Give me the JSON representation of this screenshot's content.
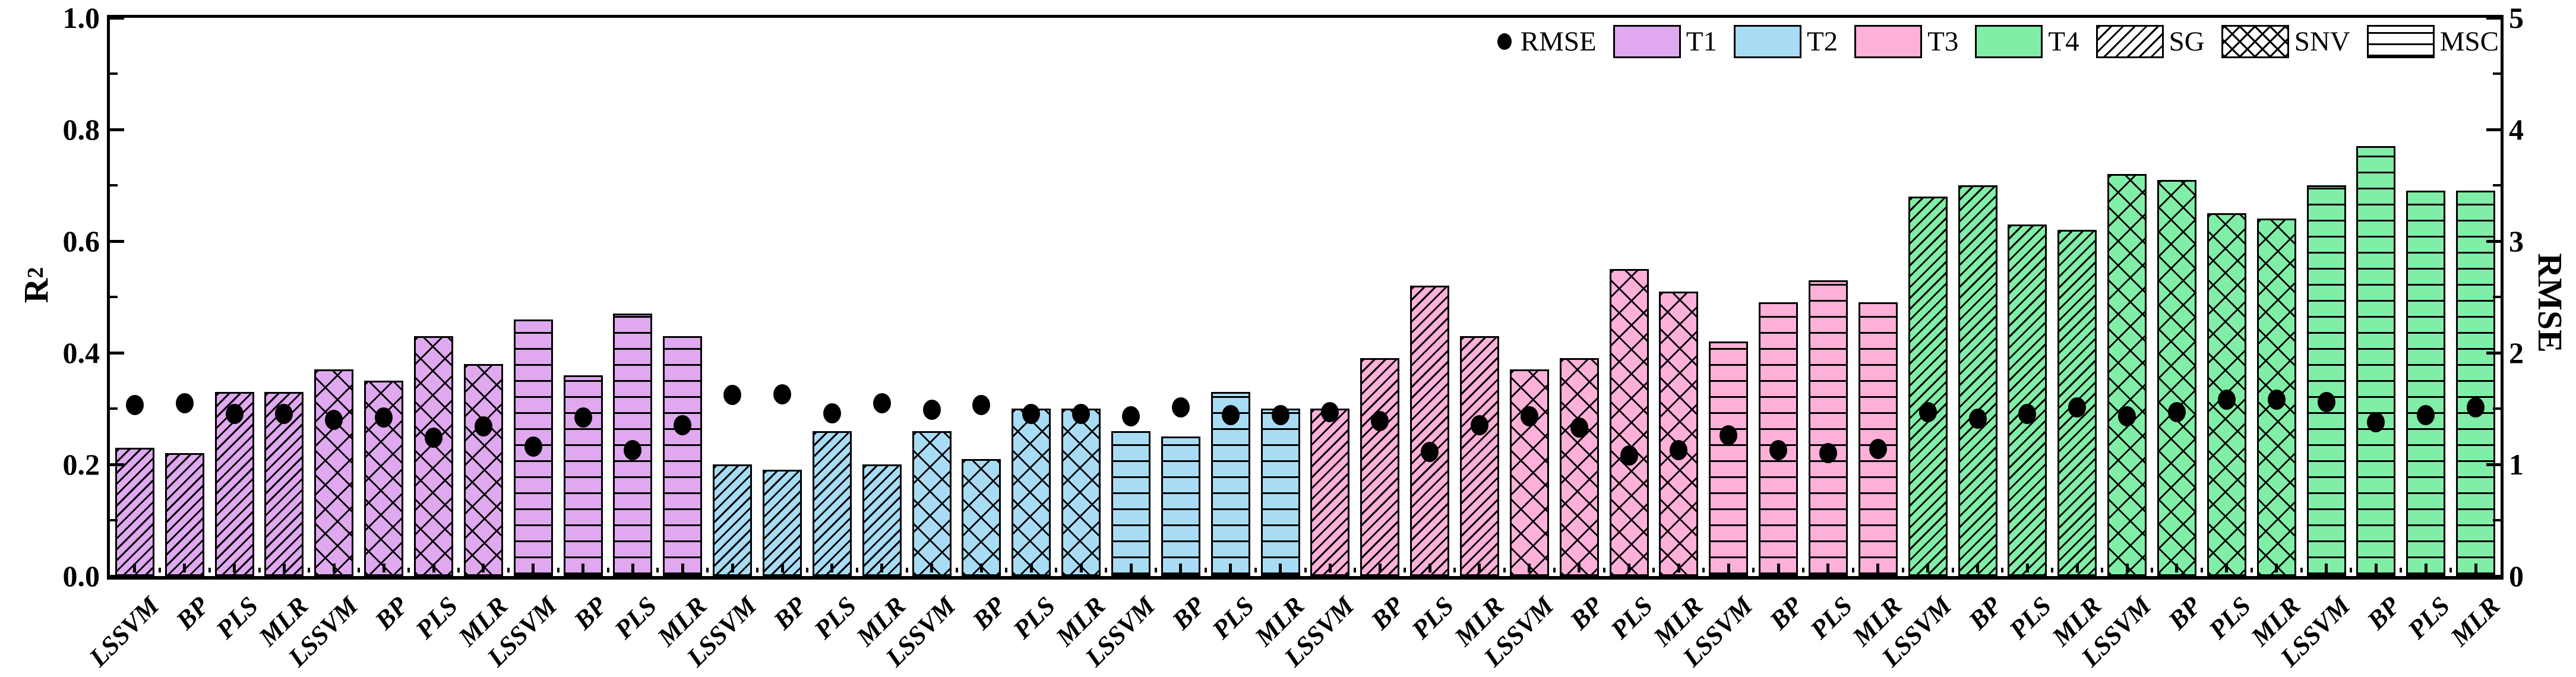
{
  "chart_data": {
    "type": "bar",
    "title": "",
    "left_axis": {
      "label_base": "R",
      "label_sup": "2",
      "min": 0.0,
      "max": 1.0,
      "tick_values": [
        0.0,
        0.2,
        0.4,
        0.6,
        0.8,
        1.0
      ],
      "tick_labels": [
        "0.0",
        "0.2",
        "0.4",
        "0.6",
        "0.8",
        "1.0"
      ],
      "minor_step": 0.1
    },
    "right_axis": {
      "label": "RMSE",
      "min": 0,
      "max": 5,
      "tick_values": [
        0,
        1,
        2,
        3,
        4,
        5
      ],
      "tick_labels": [
        "0",
        "1",
        "2",
        "3",
        "4",
        "5"
      ],
      "minor_step": 0.5
    },
    "grid": "off",
    "legend_position": "top-right-inside",
    "legend": {
      "rmse_label": "RMSE",
      "entries": [
        {
          "label": "T1",
          "kind": "fill",
          "color": "#DFA8EF"
        },
        {
          "label": "T2",
          "kind": "fill",
          "color": "#A8DCF5"
        },
        {
          "label": "T3",
          "kind": "fill",
          "color": "#FDB0D8"
        },
        {
          "label": "T4",
          "kind": "fill",
          "color": "#81EEA7"
        },
        {
          "label": "SG",
          "kind": "hatch",
          "pattern": "SG"
        },
        {
          "label": "SNV",
          "kind": "hatch",
          "pattern": "SNV"
        },
        {
          "label": "MSC",
          "kind": "hatch",
          "pattern": "MSC"
        }
      ]
    },
    "colors": {
      "T1": "#DFA8EF",
      "T2": "#A8DCF5",
      "T3": "#FDB0D8",
      "T4": "#81EEA7",
      "dot": "#000000",
      "edge": "#000000"
    },
    "hatch_meaning": {
      "SG": "diagonal",
      "SNV": "cross-diagonal",
      "MSC": "horizontal"
    },
    "methods": [
      "LSSVM",
      "BP",
      "PLS",
      "MLR"
    ],
    "series": [
      {
        "tissue": "T1",
        "prep": "SG",
        "method": "LSSVM",
        "r2": 0.23,
        "rmse": 1.53
      },
      {
        "tissue": "T1",
        "prep": "SG",
        "method": "BP",
        "r2": 0.22,
        "rmse": 1.55
      },
      {
        "tissue": "T1",
        "prep": "SG",
        "method": "PLS",
        "r2": 0.33,
        "rmse": 1.45
      },
      {
        "tissue": "T1",
        "prep": "SG",
        "method": "MLR",
        "r2": 0.33,
        "rmse": 1.45
      },
      {
        "tissue": "T1",
        "prep": "SNV",
        "method": "LSSVM",
        "r2": 0.37,
        "rmse": 1.4
      },
      {
        "tissue": "T1",
        "prep": "SNV",
        "method": "BP",
        "r2": 0.35,
        "rmse": 1.42
      },
      {
        "tissue": "T1",
        "prep": "SNV",
        "method": "PLS",
        "r2": 0.43,
        "rmse": 1.24
      },
      {
        "tissue": "T1",
        "prep": "SNV",
        "method": "MLR",
        "r2": 0.38,
        "rmse": 1.34
      },
      {
        "tissue": "T1",
        "prep": "MSC",
        "method": "LSSVM",
        "r2": 0.46,
        "rmse": 1.16
      },
      {
        "tissue": "T1",
        "prep": "MSC",
        "method": "BP",
        "r2": 0.36,
        "rmse": 1.42
      },
      {
        "tissue": "T1",
        "prep": "MSC",
        "method": "PLS",
        "r2": 0.47,
        "rmse": 1.13
      },
      {
        "tissue": "T1",
        "prep": "MSC",
        "method": "MLR",
        "r2": 0.43,
        "rmse": 1.35
      },
      {
        "tissue": "T2",
        "prep": "SG",
        "method": "LSSVM",
        "r2": 0.2,
        "rmse": 1.62
      },
      {
        "tissue": "T2",
        "prep": "SG",
        "method": "BP",
        "r2": 0.19,
        "rmse": 1.63
      },
      {
        "tissue": "T2",
        "prep": "SG",
        "method": "PLS",
        "r2": 0.26,
        "rmse": 1.46
      },
      {
        "tissue": "T2",
        "prep": "SG",
        "method": "MLR",
        "r2": 0.2,
        "rmse": 1.55
      },
      {
        "tissue": "T2",
        "prep": "SNV",
        "method": "LSSVM",
        "r2": 0.26,
        "rmse": 1.49
      },
      {
        "tissue": "T2",
        "prep": "SNV",
        "method": "BP",
        "r2": 0.21,
        "rmse": 1.53
      },
      {
        "tissue": "T2",
        "prep": "SNV",
        "method": "PLS",
        "r2": 0.3,
        "rmse": 1.45
      },
      {
        "tissue": "T2",
        "prep": "SNV",
        "method": "MLR",
        "r2": 0.3,
        "rmse": 1.45
      },
      {
        "tissue": "T2",
        "prep": "MSC",
        "method": "LSSVM",
        "r2": 0.26,
        "rmse": 1.43
      },
      {
        "tissue": "T2",
        "prep": "MSC",
        "method": "BP",
        "r2": 0.25,
        "rmse": 1.51
      },
      {
        "tissue": "T2",
        "prep": "MSC",
        "method": "PLS",
        "r2": 0.33,
        "rmse": 1.44
      },
      {
        "tissue": "T2",
        "prep": "MSC",
        "method": "MLR",
        "r2": 0.3,
        "rmse": 1.44
      },
      {
        "tissue": "T3",
        "prep": "SG",
        "method": "LSSVM",
        "r2": 0.3,
        "rmse": 1.47
      },
      {
        "tissue": "T3",
        "prep": "SG",
        "method": "BP",
        "r2": 0.39,
        "rmse": 1.39
      },
      {
        "tissue": "T3",
        "prep": "SG",
        "method": "PLS",
        "r2": 0.52,
        "rmse": 1.11
      },
      {
        "tissue": "T3",
        "prep": "SG",
        "method": "MLR",
        "r2": 0.43,
        "rmse": 1.35
      },
      {
        "tissue": "T3",
        "prep": "SNV",
        "method": "LSSVM",
        "r2": 0.37,
        "rmse": 1.43
      },
      {
        "tissue": "T3",
        "prep": "SNV",
        "method": "BP",
        "r2": 0.39,
        "rmse": 1.33
      },
      {
        "tissue": "T3",
        "prep": "SNV",
        "method": "PLS",
        "r2": 0.55,
        "rmse": 1.08
      },
      {
        "tissue": "T3",
        "prep": "SNV",
        "method": "MLR",
        "r2": 0.51,
        "rmse": 1.13
      },
      {
        "tissue": "T3",
        "prep": "MSC",
        "method": "LSSVM",
        "r2": 0.42,
        "rmse": 1.26
      },
      {
        "tissue": "T3",
        "prep": "MSC",
        "method": "BP",
        "r2": 0.49,
        "rmse": 1.13
      },
      {
        "tissue": "T3",
        "prep": "MSC",
        "method": "PLS",
        "r2": 0.53,
        "rmse": 1.1
      },
      {
        "tissue": "T3",
        "prep": "MSC",
        "method": "MLR",
        "r2": 0.49,
        "rmse": 1.14
      },
      {
        "tissue": "T4",
        "prep": "SG",
        "method": "LSSVM",
        "r2": 0.68,
        "rmse": 1.47
      },
      {
        "tissue": "T4",
        "prep": "SG",
        "method": "BP",
        "r2": 0.7,
        "rmse": 1.41
      },
      {
        "tissue": "T4",
        "prep": "SG",
        "method": "PLS",
        "r2": 0.63,
        "rmse": 1.45
      },
      {
        "tissue": "T4",
        "prep": "SG",
        "method": "MLR",
        "r2": 0.62,
        "rmse": 1.51
      },
      {
        "tissue": "T4",
        "prep": "SNV",
        "method": "LSSVM",
        "r2": 0.72,
        "rmse": 1.43
      },
      {
        "tissue": "T4",
        "prep": "SNV",
        "method": "BP",
        "r2": 0.71,
        "rmse": 1.47
      },
      {
        "tissue": "T4",
        "prep": "SNV",
        "method": "PLS",
        "r2": 0.65,
        "rmse": 1.58
      },
      {
        "tissue": "T4",
        "prep": "SNV",
        "method": "MLR",
        "r2": 0.64,
        "rmse": 1.58
      },
      {
        "tissue": "T4",
        "prep": "MSC",
        "method": "LSSVM",
        "r2": 0.7,
        "rmse": 1.56
      },
      {
        "tissue": "T4",
        "prep": "MSC",
        "method": "BP",
        "r2": 0.77,
        "rmse": 1.38
      },
      {
        "tissue": "T4",
        "prep": "MSC",
        "method": "PLS",
        "r2": 0.69,
        "rmse": 1.44
      },
      {
        "tissue": "T4",
        "prep": "MSC",
        "method": "MLR",
        "r2": 0.69,
        "rmse": 1.51
      }
    ]
  }
}
